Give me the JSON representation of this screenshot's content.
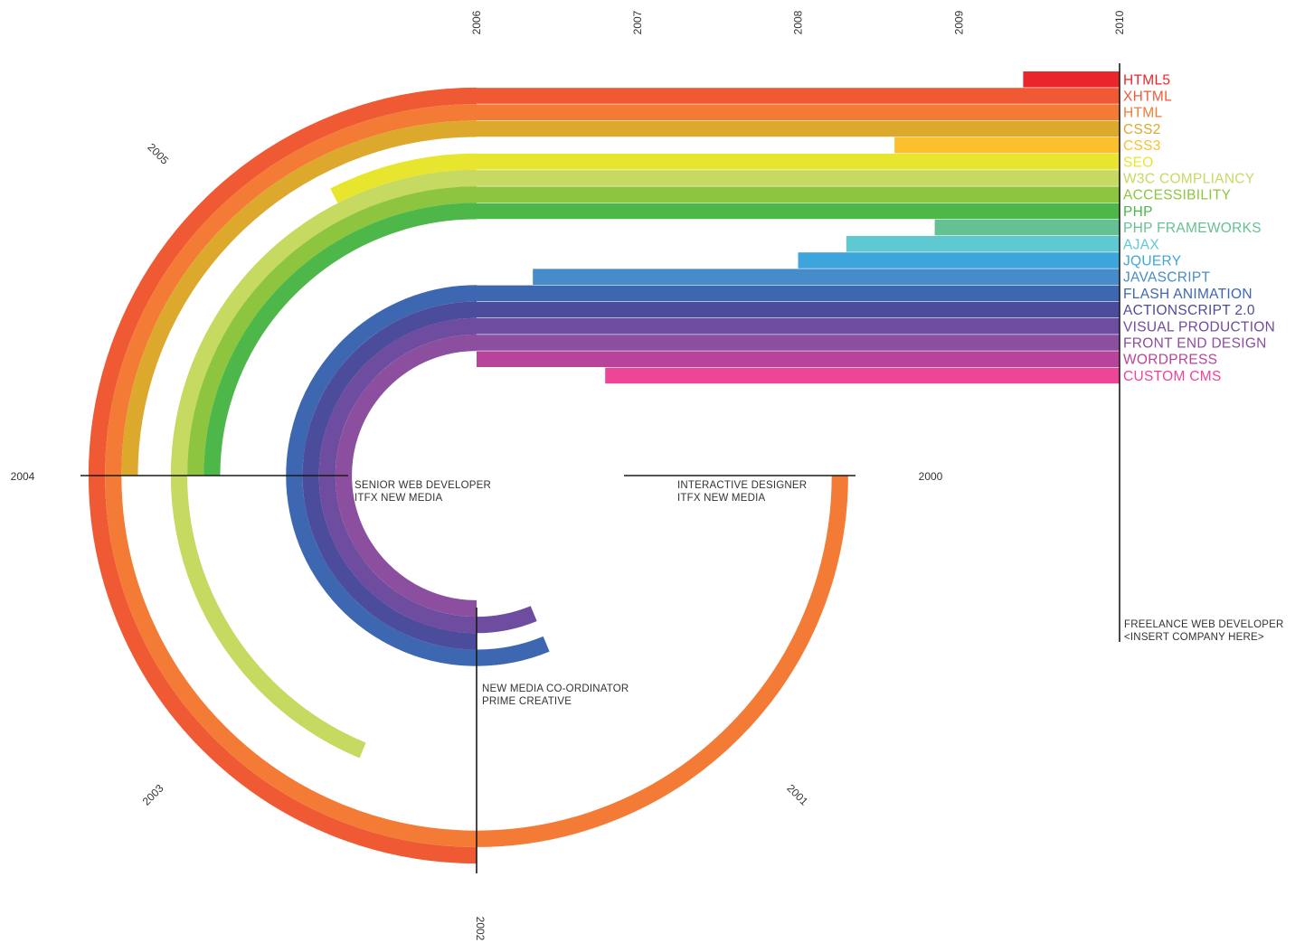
{
  "chart_data": {
    "type": "other",
    "year_labels": [
      "2000",
      "2001",
      "2002",
      "2003",
      "2004",
      "2005",
      "2006",
      "2007",
      "2008",
      "2009",
      "2010"
    ],
    "skills": [
      {
        "name": "HTML5",
        "color": "#e8262c",
        "start": 2009.4,
        "end": 2010
      },
      {
        "name": "XHTML",
        "color": "#ef5a35",
        "start": 2002,
        "end": 2010
      },
      {
        "name": "HTML",
        "color": "#f47b35",
        "start": 2000,
        "end": 2010
      },
      {
        "name": "CSS2",
        "color": "#dda92c",
        "start": 2004,
        "end": 2010
      },
      {
        "name": "CSS3",
        "color": "#fcc02c",
        "start": 2008.6,
        "end": 2010
      },
      {
        "name": "SEO",
        "color": "#e8e52f",
        "start": 2005.4,
        "end": 2010
      },
      {
        "name": "W3C COMPLIANCY",
        "color": "#c6d960",
        "start": 2002.5,
        "end": 2010
      },
      {
        "name": "ACCESSIBILITY",
        "color": "#8dc53e",
        "start": 2004,
        "end": 2010
      },
      {
        "name": "PHP",
        "color": "#4db74a",
        "start": 2004,
        "end": 2010
      },
      {
        "name": "PHP FRAMEWORKS",
        "color": "#65c193",
        "start": 2008.85,
        "end": 2010
      },
      {
        "name": "AJAX",
        "color": "#5ec9d1",
        "start": 2008.3,
        "end": 2010
      },
      {
        "name": "JQUERY",
        "color": "#3ca6dc",
        "start": 2008,
        "end": 2010
      },
      {
        "name": "JAVASCRIPT",
        "color": "#468ccb",
        "start": 2006.35,
        "end": 2010
      },
      {
        "name": "FLASH ANIMATION",
        "color": "#3d67b1",
        "start": 2001.5,
        "end": 2010
      },
      {
        "name": "ACTIONSCRIPT 2.0",
        "color": "#4c4c9d",
        "start": 2002,
        "end": 2010
      },
      {
        "name": "VISUAL PRODUCTION",
        "color": "#6e4c9f",
        "start": 2001.5,
        "end": 2010
      },
      {
        "name": "FRONT END DESIGN",
        "color": "#8c4e9e",
        "start": 2002,
        "end": 2010
      },
      {
        "name": "WORDPRESS",
        "color": "#b8439a",
        "start": 2006,
        "end": 2010
      },
      {
        "name": "CUSTOM CMS",
        "color": "#ee4697",
        "start": 2006.8,
        "end": 2010
      }
    ],
    "roles": [
      {
        "line1": "SENIOR WEB DEVELOPER",
        "line2": "ITFX NEW MEDIA"
      },
      {
        "line1": "INTERACTIVE DESIGNER",
        "line2": "ITFX NEW MEDIA"
      },
      {
        "line1": "NEW MEDIA CO-ORDINATOR",
        "line2": "PRIME CREATIVE"
      },
      {
        "line1": "FREELANCE WEB DEVELOPER",
        "line2": "<INSERT COMPANY HERE>"
      }
    ]
  }
}
